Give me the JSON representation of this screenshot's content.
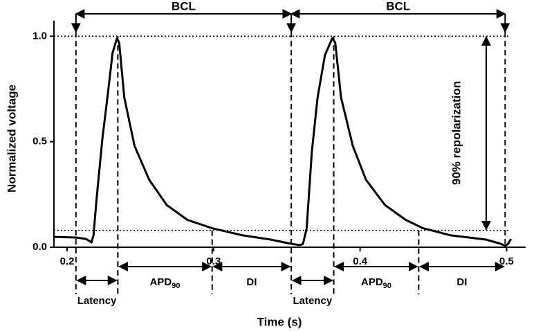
{
  "chart_data": {
    "type": "line",
    "xlabel": "Time (s)",
    "ylabel": "Normalized voltage",
    "xlim": [
      0.191,
      0.513
    ],
    "ylim": [
      0,
      1.06
    ],
    "xticks": [
      0.2,
      0.3,
      0.4,
      0.5
    ],
    "yticks": [
      {
        "value": 0,
        "label": "0.0"
      },
      0.5,
      {
        "value": 1,
        "label": "1.0"
      }
    ],
    "series": [
      {
        "color": "#000000",
        "x": [
          0.191,
          0.206,
          0.213,
          0.2166,
          0.218,
          0.22,
          0.224,
          0.228,
          0.231,
          0.234,
          0.2355,
          0.239,
          0.246,
          0.256,
          0.268,
          0.282,
          0.299,
          0.32,
          0.339,
          0.353,
          0.359,
          0.361,
          0.3635,
          0.367,
          0.371,
          0.376,
          0.381,
          0.383,
          0.387,
          0.395,
          0.404,
          0.417,
          0.431,
          0.443,
          0.462,
          0.486,
          0.496,
          0.499,
          0.501,
          0.503
        ],
        "values": [
          0.049,
          0.046,
          0.039,
          0.023,
          0.056,
          0.22,
          0.51,
          0.74,
          0.92,
          0.99,
          0.97,
          0.71,
          0.48,
          0.32,
          0.2,
          0.13,
          0.09,
          0.056,
          0.036,
          0.016,
          0.01,
          0.016,
          0.089,
          0.45,
          0.71,
          0.91,
          0.99,
          0.97,
          0.71,
          0.48,
          0.32,
          0.2,
          0.13,
          0.09,
          0.056,
          0.036,
          0.016,
          0.007,
          0.016,
          0.039
        ]
      }
    ],
    "reference_lines": [
      1.0,
      0.08
    ],
    "markers": [
      0.206,
      0.2346,
      0.299,
      0.353,
      0.382,
      0.44,
      0.499
    ],
    "annotations": {
      "bcl": "BCL",
      "latency": "Latency",
      "apd": "APD",
      "apd_sub": "90",
      "di": "DI",
      "repolarization": "90% repolarization"
    }
  }
}
